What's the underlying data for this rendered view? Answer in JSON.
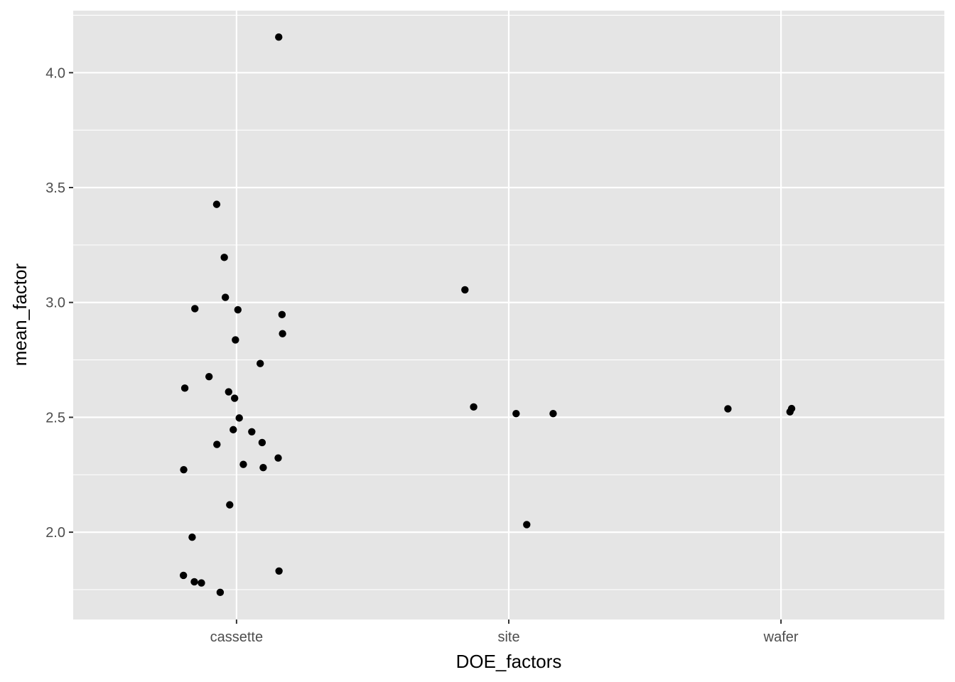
{
  "chart_data": {
    "type": "scatter",
    "xlabel": "DOE_factors",
    "ylabel": "mean_factor",
    "categories": [
      "cassette",
      "site",
      "wafer"
    ],
    "ylim": [
      1.62,
      4.27
    ],
    "y_ticks": [
      2.0,
      2.5,
      3.0,
      3.5,
      4.0
    ],
    "y_tick_labels": [
      "2.0",
      "2.5",
      "3.0",
      "3.5",
      "4.0"
    ],
    "grid": true,
    "jitter": true,
    "colors": {
      "panel": "#e5e5e5",
      "grid": "#ffffff",
      "point": "#000000",
      "tick_text": "#4d4d4d",
      "tick_mark": "#333333"
    },
    "points": [
      {
        "category": "cassette",
        "offset": 0.155,
        "y": 4.155
      },
      {
        "category": "cassette",
        "offset": -0.073,
        "y": 3.427
      },
      {
        "category": "cassette",
        "offset": -0.045,
        "y": 3.196
      },
      {
        "category": "cassette",
        "offset": -0.041,
        "y": 3.022
      },
      {
        "category": "cassette",
        "offset": -0.153,
        "y": 2.973
      },
      {
        "category": "cassette",
        "offset": 0.005,
        "y": 2.968
      },
      {
        "category": "cassette",
        "offset": 0.167,
        "y": 2.947
      },
      {
        "category": "cassette",
        "offset": 0.169,
        "y": 2.864
      },
      {
        "category": "cassette",
        "offset": -0.004,
        "y": 2.837
      },
      {
        "category": "cassette",
        "offset": 0.087,
        "y": 2.734
      },
      {
        "category": "cassette",
        "offset": -0.101,
        "y": 2.677
      },
      {
        "category": "cassette",
        "offset": -0.19,
        "y": 2.627
      },
      {
        "category": "cassette",
        "offset": -0.029,
        "y": 2.611
      },
      {
        "category": "cassette",
        "offset": -0.007,
        "y": 2.583
      },
      {
        "category": "cassette",
        "offset": 0.01,
        "y": 2.497
      },
      {
        "category": "cassette",
        "offset": -0.012,
        "y": 2.446
      },
      {
        "category": "cassette",
        "offset": 0.056,
        "y": 2.437
      },
      {
        "category": "cassette",
        "offset": 0.094,
        "y": 2.39
      },
      {
        "category": "cassette",
        "offset": -0.072,
        "y": 2.382
      },
      {
        "category": "cassette",
        "offset": 0.153,
        "y": 2.323
      },
      {
        "category": "cassette",
        "offset": 0.025,
        "y": 2.295
      },
      {
        "category": "cassette",
        "offset": 0.098,
        "y": 2.281
      },
      {
        "category": "cassette",
        "offset": -0.194,
        "y": 2.272
      },
      {
        "category": "cassette",
        "offset": -0.025,
        "y": 2.119
      },
      {
        "category": "cassette",
        "offset": -0.163,
        "y": 1.978
      },
      {
        "category": "cassette",
        "offset": 0.156,
        "y": 1.831
      },
      {
        "category": "cassette",
        "offset": -0.195,
        "y": 1.812
      },
      {
        "category": "cassette",
        "offset": -0.155,
        "y": 1.784
      },
      {
        "category": "cassette",
        "offset": -0.129,
        "y": 1.779
      },
      {
        "category": "cassette",
        "offset": -0.06,
        "y": 1.738
      },
      {
        "category": "site",
        "offset": -0.161,
        "y": 3.055
      },
      {
        "category": "site",
        "offset": -0.129,
        "y": 2.545
      },
      {
        "category": "site",
        "offset": 0.027,
        "y": 2.516
      },
      {
        "category": "site",
        "offset": 0.163,
        "y": 2.516
      },
      {
        "category": "site",
        "offset": 0.066,
        "y": 2.033
      },
      {
        "category": "wafer",
        "offset": -0.195,
        "y": 2.537
      },
      {
        "category": "wafer",
        "offset": 0.039,
        "y": 2.538
      },
      {
        "category": "wafer",
        "offset": 0.033,
        "y": 2.524
      }
    ]
  }
}
